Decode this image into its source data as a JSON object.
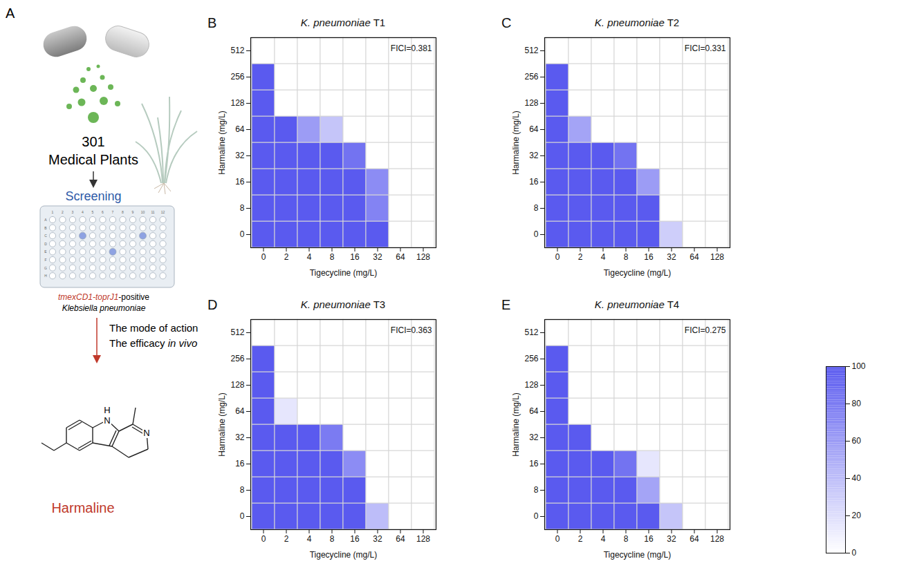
{
  "diagram": {
    "letter": "A",
    "count": "301",
    "label": "Medical Plants",
    "step": "Screening",
    "plate": {
      "columns": [
        1,
        2,
        3,
        4,
        5,
        6,
        7,
        8,
        9,
        10,
        11,
        12
      ],
      "rows": [
        "A",
        "B",
        "C",
        "D",
        "E",
        "F",
        "G",
        "H"
      ]
    },
    "strain": [
      [
        "tmexCD1-toprJ1",
        "-positive"
      ],
      "Klebsiella pneumoniae"
    ],
    "aims": [
      "The mode of action",
      [
        "The efficacy",
        "in vivo"
      ]
    ],
    "atoms": [
      "N",
      "H",
      "N"
    ],
    "compound": "Harmaline"
  },
  "colorbar": {
    "range": [
      0,
      100
    ],
    "ticks": [
      0,
      20,
      40,
      60,
      80,
      100
    ]
  },
  "chart_data": [
    {
      "letter": "B",
      "type": "heatmap",
      "title": "K. pneumoniae T1",
      "annotation": "FICI=0.381",
      "x_label": "Tigecycline (mg/L)",
      "y_label": "Harmaline (mg/L)",
      "color": "#5a5aef",
      "x_categories": [
        0,
        2,
        4,
        8,
        16,
        32,
        64,
        128
      ],
      "y_categories": [
        0,
        8,
        16,
        32,
        64,
        128,
        256,
        512
      ],
      "cells": [
        [
          100,
          100,
          100,
          100,
          100,
          100,
          0,
          0
        ],
        [
          100,
          100,
          100,
          100,
          100,
          75,
          0,
          0
        ],
        [
          100,
          100,
          100,
          100,
          100,
          70,
          0,
          0
        ],
        [
          100,
          100,
          100,
          100,
          85,
          0,
          0,
          0
        ],
        [
          100,
          100,
          60,
          35,
          0,
          0,
          0,
          0
        ],
        [
          100,
          0,
          0,
          0,
          0,
          0,
          0,
          0
        ],
        [
          100,
          0,
          0,
          0,
          0,
          0,
          0,
          0
        ],
        [
          0,
          0,
          0,
          0,
          0,
          0,
          0,
          0
        ]
      ]
    },
    {
      "letter": "C",
      "type": "heatmap",
      "title": "K. pneumoniae T2",
      "annotation": "FICI=0.331",
      "x_label": "Tigecycline (mg/L)",
      "y_label": "Harmaline (mg/L)",
      "color": "#5a5aef",
      "x_categories": [
        0,
        2,
        4,
        8,
        16,
        32,
        64,
        128
      ],
      "y_categories": [
        0,
        8,
        16,
        32,
        64,
        128,
        256,
        512
      ],
      "cells": [
        [
          100,
          100,
          100,
          100,
          100,
          30,
          0,
          0
        ],
        [
          100,
          100,
          100,
          100,
          100,
          0,
          0,
          0
        ],
        [
          100,
          100,
          100,
          100,
          60,
          0,
          0,
          0
        ],
        [
          100,
          100,
          100,
          85,
          0,
          0,
          0,
          0
        ],
        [
          100,
          55,
          0,
          0,
          0,
          0,
          0,
          0
        ],
        [
          100,
          0,
          0,
          0,
          0,
          0,
          0,
          0
        ],
        [
          100,
          0,
          0,
          0,
          0,
          0,
          0,
          0
        ],
        [
          0,
          0,
          0,
          0,
          0,
          0,
          0,
          0
        ]
      ]
    },
    {
      "letter": "D",
      "type": "heatmap",
      "title": "K. pneumoniae T3",
      "annotation": "FICI=0.363",
      "x_label": "Tigecycline (mg/L)",
      "y_label": "Harmaline (mg/L)",
      "color": "#5a5aef",
      "x_categories": [
        0,
        2,
        4,
        8,
        16,
        32,
        64,
        128
      ],
      "y_categories": [
        0,
        8,
        16,
        32,
        64,
        128,
        256,
        512
      ],
      "cells": [
        [
          100,
          100,
          100,
          100,
          100,
          40,
          0,
          0
        ],
        [
          100,
          100,
          100,
          100,
          100,
          0,
          0,
          0
        ],
        [
          100,
          100,
          100,
          100,
          70,
          0,
          0,
          0
        ],
        [
          100,
          100,
          100,
          80,
          0,
          0,
          0,
          0
        ],
        [
          100,
          15,
          0,
          0,
          0,
          0,
          0,
          0
        ],
        [
          100,
          0,
          0,
          0,
          0,
          0,
          0,
          0
        ],
        [
          100,
          0,
          0,
          0,
          0,
          0,
          0,
          0
        ],
        [
          0,
          0,
          0,
          0,
          0,
          0,
          0,
          0
        ]
      ]
    },
    {
      "letter": "E",
      "type": "heatmap",
      "title": "K. pneumoniae T4",
      "annotation": "FICI=0.275",
      "x_label": "Tigecycline (mg/L)",
      "y_label": "Harmaline (mg/L)",
      "color": "#5a5aef",
      "x_categories": [
        0,
        2,
        4,
        8,
        16,
        32,
        64,
        128
      ],
      "y_categories": [
        0,
        8,
        16,
        32,
        64,
        128,
        256,
        512
      ],
      "cells": [
        [
          100,
          100,
          100,
          100,
          100,
          35,
          0,
          0
        ],
        [
          100,
          100,
          100,
          100,
          55,
          0,
          0,
          0
        ],
        [
          100,
          100,
          100,
          85,
          15,
          0,
          0,
          0
        ],
        [
          100,
          100,
          0,
          0,
          0,
          0,
          0,
          0
        ],
        [
          100,
          0,
          0,
          0,
          0,
          0,
          0,
          0
        ],
        [
          100,
          0,
          0,
          0,
          0,
          0,
          0,
          0
        ],
        [
          100,
          0,
          0,
          0,
          0,
          0,
          0,
          0
        ],
        [
          0,
          0,
          0,
          0,
          0,
          0,
          0,
          0
        ]
      ]
    }
  ]
}
